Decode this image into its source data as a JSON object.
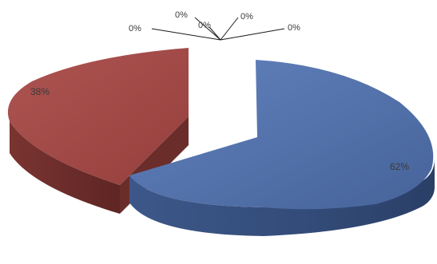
{
  "chart_data": {
    "type": "pie",
    "three_d": true,
    "exploded": true,
    "title": "",
    "legend": "none",
    "slices": [
      {
        "label": "62%",
        "value": 62,
        "color": "#4f6fa8"
      },
      {
        "label": "38%",
        "value": 38,
        "color": "#a24a47"
      },
      {
        "label": "0%",
        "value": 0
      },
      {
        "label": "0%",
        "value": 0
      },
      {
        "label": "0%",
        "value": 0
      },
      {
        "label": "0%",
        "value": 0
      },
      {
        "label": "0%",
        "value": 0
      }
    ]
  }
}
